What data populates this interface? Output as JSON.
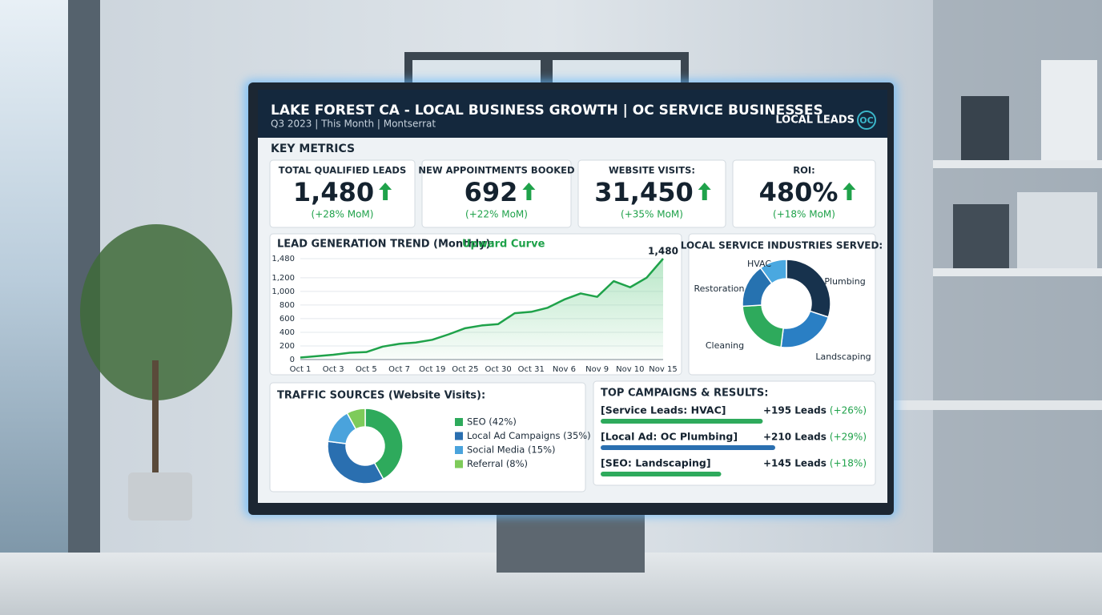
{
  "header": {
    "title": "LAKE FOREST CA - LOCAL BUSINESS GROWTH | OC SERVICE BUSINESSES",
    "subtitle": "Q3 2023 | This Month | Montserrat",
    "brand": "LOCAL LEADS",
    "brand_mark": "OC"
  },
  "key_metrics_title": "KEY METRICS",
  "metrics": [
    {
      "label": "TOTAL QUALIFIED LEADS",
      "value": "1,480",
      "change": "(+28% MoM)"
    },
    {
      "label": "NEW APPOINTMENTS BOOKED",
      "value": "692",
      "change": "(+22% MoM)"
    },
    {
      "label": "WEBSITE VISITS:",
      "value": "31,450",
      "change": "(+35% MoM)"
    },
    {
      "label": "ROI:",
      "value": "480%",
      "change": "(+18% MoM)"
    }
  ],
  "lead_trend": {
    "type": "line",
    "title": "LEAD GENERATION TREND (Monthly):",
    "highlight": "Upward Curve",
    "annotation": "1,480",
    "categories": [
      "Oct 1",
      null,
      "Oct 3",
      null,
      "Oct 5",
      null,
      "Oct 7",
      null,
      "Oct 19",
      null,
      "Oct 25",
      null,
      "Oct 30",
      null,
      "Oct 31",
      null,
      "Nov 6",
      null,
      "Nov 9",
      null,
      "Nov 10",
      null,
      "Nov 15"
    ],
    "values": [
      30,
      50,
      70,
      100,
      110,
      190,
      230,
      250,
      290,
      370,
      460,
      500,
      520,
      680,
      700,
      760,
      880,
      970,
      920,
      1150,
      1060,
      1200,
      1480
    ],
    "color": "#1fa24a",
    "ylim": [
      0,
      1480
    ],
    "yticks": [
      0,
      200,
      400,
      600,
      800,
      {
        "value": 1000,
        "label": "1,000"
      },
      {
        "value": 1200,
        "label": "1,200"
      },
      {
        "value": 1480,
        "label": "1,480"
      }
    ],
    "grid": true
  },
  "industries": {
    "type": "pie",
    "title": "LOCAL SERVICE INDUSTRIES SERVED:",
    "categories": [
      "Plumbing",
      "Landscaping",
      "Cleaning",
      "Restoration",
      "HVAC"
    ],
    "values": [
      30,
      22,
      22,
      16,
      10
    ],
    "colors": [
      "#17324d",
      "#2a7fc4",
      "#2eaa5c",
      "#2672b0",
      "#4aa8e0"
    ]
  },
  "traffic": {
    "type": "pie",
    "title": "TRAFFIC SOURCES (Website Visits):",
    "labels": [
      "SEO (42%)",
      "Local Ad Campaigns (35%)",
      "Social Media (15%)",
      "Referral (8%)"
    ],
    "values": [
      42,
      35,
      15,
      8
    ],
    "colors": [
      "#2eaa5c",
      "#2a6fb0",
      "#4aa3dc",
      "#7ecb5a"
    ]
  },
  "campaigns": {
    "title": "TOP CAMPAIGNS & RESULTS:",
    "rows": [
      {
        "name": "[Service Leads: HVAC]",
        "leads": 195,
        "result": "+195 Leads",
        "change": "(+26%)",
        "color": "#2eaa5c"
      },
      {
        "name": "[Local Ad: OC Plumbing]",
        "leads": 210,
        "result": "+210 Leads",
        "change": "(+29%)",
        "color": "#2a6fb0"
      },
      {
        "name": "[SEO: Landscaping]",
        "leads": 145,
        "result": "+145 Leads",
        "change": "(+18%)",
        "color": "#2eaa5c"
      }
    ]
  }
}
